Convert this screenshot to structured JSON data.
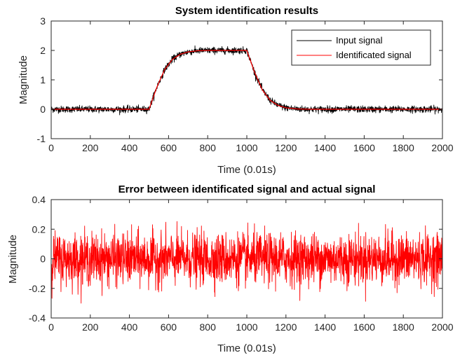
{
  "chart_data": [
    {
      "type": "line",
      "title": "System identification results",
      "xlabel": "Time (0.01s)",
      "ylabel": "Magnitude",
      "xlim": [
        0,
        2000
      ],
      "ylim": [
        -1,
        3
      ],
      "xticks": [
        "0",
        "200",
        "400",
        "600",
        "800",
        "1000",
        "1200",
        "1400",
        "1600",
        "1800",
        "2000"
      ],
      "yticks": [
        "-1",
        "0",
        "1",
        "2",
        "3"
      ],
      "grid": false,
      "legend_position": "top-right",
      "series": [
        {
          "name": "Input signal",
          "color": "#000000",
          "noise_amplitude": 0.1,
          "x": [
            0,
            500,
            540,
            580,
            620,
            660,
            700,
            750,
            800,
            1000,
            1040,
            1080,
            1120,
            1160,
            1200,
            1260,
            1320,
            2000
          ],
          "y": [
            0,
            0,
            0.75,
            1.35,
            1.7,
            1.87,
            1.95,
            1.99,
            2.0,
            2.0,
            1.25,
            0.65,
            0.3,
            0.13,
            0.05,
            0.01,
            0,
            0
          ]
        },
        {
          "name": "Identificated signal",
          "color": "#ff0000",
          "x": [
            0,
            500,
            540,
            580,
            620,
            660,
            700,
            750,
            800,
            1000,
            1040,
            1080,
            1120,
            1160,
            1200,
            1260,
            1320,
            2000
          ],
          "y": [
            0,
            0,
            0.75,
            1.35,
            1.7,
            1.87,
            1.95,
            1.99,
            2.0,
            2.0,
            1.25,
            0.65,
            0.3,
            0.13,
            0.05,
            0.01,
            0,
            0
          ]
        }
      ]
    },
    {
      "type": "line",
      "title": "Error between identificated signal and actual signal",
      "xlabel": "Time (0.01s)",
      "ylabel": "Magnitude",
      "xlim": [
        0,
        2000
      ],
      "ylim": [
        -0.4,
        0.4
      ],
      "xticks": [
        "0",
        "200",
        "400",
        "600",
        "800",
        "1000",
        "1200",
        "1400",
        "1600",
        "1800",
        "2000"
      ],
      "yticks": [
        "-0.4",
        "-0.2",
        "0",
        "0.2",
        "0.4"
      ],
      "grid": false,
      "series": [
        {
          "color": "#ff0000",
          "noise_std": 0.1,
          "noise_range": [
            -0.3,
            0.32
          ],
          "x": [
            0,
            2000
          ],
          "y": [
            0,
            0
          ]
        }
      ]
    }
  ]
}
